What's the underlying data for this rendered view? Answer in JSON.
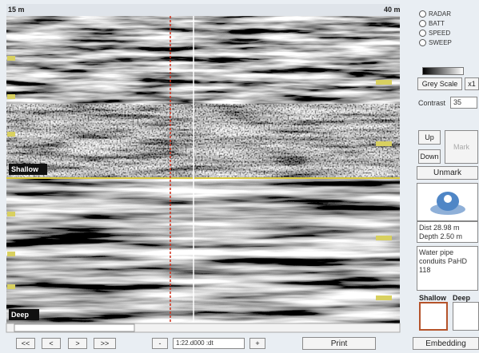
{
  "radar": {
    "start_label": "15 m",
    "end_label": "40 m",
    "shallow_label": "Shallow",
    "deep_label": "Deep"
  },
  "options": [
    "RADAR",
    "BATT",
    "SPEED",
    "SWEEP"
  ],
  "grey_scale_button": "Grey Scale",
  "zoom_button": "x1",
  "contrast": {
    "label": "Contrast",
    "value": 35
  },
  "buttons": {
    "up": "Up",
    "down": "Down",
    "mark": "Mark",
    "unmark": "Unmark"
  },
  "info": {
    "dist": "Dist 28.98 m",
    "depth": "Depth 2.50 m",
    "note": "Water pipe conduits PaHD 118"
  },
  "thumbnails": {
    "shallow": "Shallow",
    "deep": "Deep"
  },
  "toolbar": {
    "first": "<<",
    "prev": "<",
    "next": ">",
    "last": ">>",
    "minus": "-",
    "scale": "1:22.d000 :dt",
    "plus": "+",
    "print": "Print",
    "embedding": "Embedding"
  }
}
